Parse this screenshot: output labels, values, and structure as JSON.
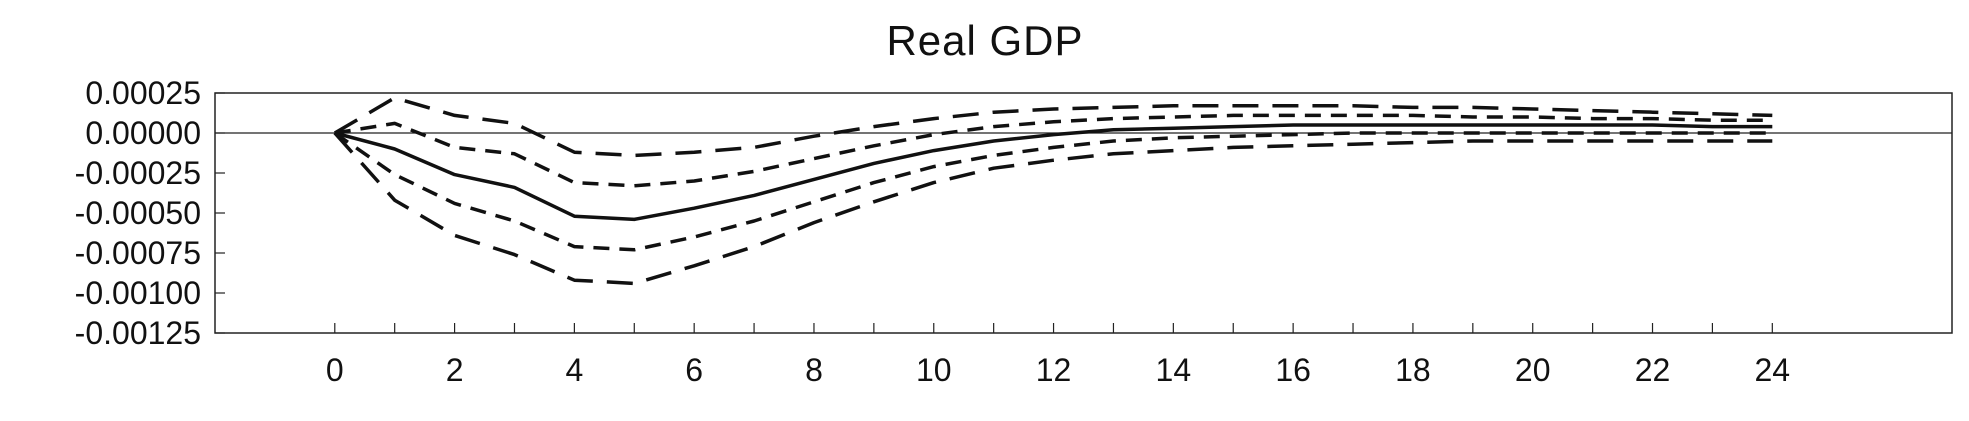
{
  "chart_data": {
    "type": "line",
    "title": "Real GDP",
    "xlabel": "",
    "ylabel": "",
    "xlim": [
      -2,
      27
    ],
    "ylim": [
      -0.00125,
      0.00025
    ],
    "xticks": [
      0,
      2,
      4,
      6,
      8,
      10,
      12,
      14,
      16,
      18,
      20,
      22,
      24
    ],
    "yticks": [
      0.00025,
      0.0,
      -0.00025,
      -0.0005,
      -0.00075,
      -0.001,
      -0.00125
    ],
    "ytick_labels": [
      "0.00025",
      "0.00000",
      "-0.00025",
      "-0.00050",
      "-0.00075",
      "-0.00100",
      "-0.00125"
    ],
    "xtick_labels": [
      "0",
      "2",
      "4",
      "6",
      "8",
      "10",
      "12",
      "14",
      "16",
      "18",
      "20",
      "22",
      "24"
    ],
    "grid": false,
    "zero_line": true,
    "x": [
      0,
      1,
      2,
      3,
      4,
      5,
      6,
      7,
      8,
      9,
      10,
      11,
      12,
      13,
      14,
      15,
      16,
      17,
      18,
      19,
      20,
      21,
      22,
      23,
      24
    ],
    "series": [
      {
        "style": "solid",
        "values": [
          0.0,
          -0.0001,
          -0.00026,
          -0.00034,
          -0.00052,
          -0.00054,
          -0.00047,
          -0.00039,
          -0.00029,
          -0.00019,
          -0.00011,
          -5e-05,
          -1e-05,
          2e-05,
          3e-05,
          4e-05,
          5e-05,
          5e-05,
          5e-05,
          5e-05,
          5e-05,
          5e-05,
          5e-05,
          4e-05,
          4e-05
        ]
      },
      {
        "style": "long-dash",
        "values": [
          0.0,
          0.00022,
          0.00011,
          6e-05,
          -0.00012,
          -0.00014,
          -0.00012,
          -9e-05,
          -2e-05,
          4e-05,
          9e-05,
          0.00013,
          0.00015,
          0.00016,
          0.00017,
          0.00017,
          0.00017,
          0.00017,
          0.00016,
          0.00016,
          0.00015,
          0.00014,
          0.00013,
          0.00012,
          0.00011
        ]
      },
      {
        "style": "long-dash",
        "values": [
          0.0,
          -0.00042,
          -0.00064,
          -0.00076,
          -0.00092,
          -0.00094,
          -0.00083,
          -0.00071,
          -0.00056,
          -0.00043,
          -0.00031,
          -0.00022,
          -0.00017,
          -0.00013,
          -0.00011,
          -9e-05,
          -8e-05,
          -7e-05,
          -6e-05,
          -5e-05,
          -5e-05,
          -5e-05,
          -5e-05,
          -5e-05,
          -5e-05
        ]
      },
      {
        "style": "short-dash",
        "values": [
          0.0,
          6e-05,
          -9e-05,
          -0.00013,
          -0.00031,
          -0.00033,
          -0.0003,
          -0.00024,
          -0.00016,
          -8e-05,
          -1e-05,
          4e-05,
          7e-05,
          9e-05,
          0.0001,
          0.00011,
          0.00011,
          0.00011,
          0.00011,
          0.0001,
          0.0001,
          9e-05,
          9e-05,
          8e-05,
          8e-05
        ]
      },
      {
        "style": "short-dash",
        "values": [
          0.0,
          -0.00026,
          -0.00044,
          -0.00055,
          -0.00071,
          -0.00073,
          -0.00065,
          -0.00055,
          -0.00043,
          -0.00031,
          -0.00021,
          -0.00014,
          -9e-05,
          -5e-05,
          -3e-05,
          -2e-05,
          -1e-05,
          0.0,
          0.0,
          0.0,
          0.0,
          0.0,
          0.0,
          0.0,
          0.0
        ]
      }
    ]
  }
}
